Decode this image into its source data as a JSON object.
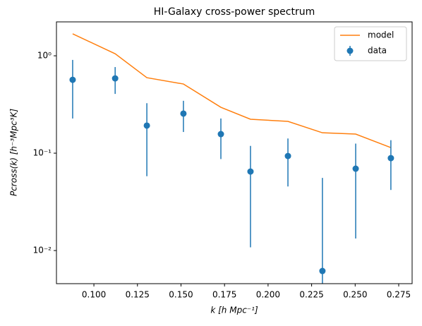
{
  "chart_data": {
    "type": "errorbar",
    "title": "HI-Galaxy cross-power spectrum",
    "xlabel": "k [h Mpc⁻¹]",
    "ylabel": "Pcross(k) [h⁻³Mpc³K]",
    "log_y": true,
    "legend": "upper right",
    "xlim": [
      0.0785,
      0.2827
    ],
    "ylim": [
      0.00457,
      2.23
    ],
    "xticks": [
      {
        "value": 0.1,
        "label": "0.100"
      },
      {
        "value": 0.125,
        "label": "0.125"
      },
      {
        "value": 0.15,
        "label": "0.150"
      },
      {
        "value": 0.175,
        "label": "0.175"
      },
      {
        "value": 0.2,
        "label": "0.200"
      },
      {
        "value": 0.225,
        "label": "0.225"
      },
      {
        "value": 0.25,
        "label": "0.250"
      },
      {
        "value": 0.275,
        "label": "0.275"
      }
    ],
    "yticks": [
      {
        "value": 0.01,
        "label": "10⁻²"
      },
      {
        "value": 0.1,
        "label": "10⁻¹"
      },
      {
        "value": 1,
        "label": "10⁰"
      }
    ],
    "x": [
      0.0878,
      0.1122,
      0.1304,
      0.1514,
      0.1729,
      0.1899,
      0.2114,
      0.2312,
      0.2503,
      0.2705
    ],
    "series": [
      {
        "name": "model",
        "kind": "line",
        "color": "#ff7f0e",
        "values": [
          1.68,
          1.05,
          0.596,
          0.513,
          0.296,
          0.223,
          0.212,
          0.162,
          0.157,
          0.114
        ]
      },
      {
        "name": "data",
        "kind": "errorbar",
        "color": "#1f77b4",
        "values": [
          0.567,
          0.586,
          0.192,
          0.255,
          0.157,
          0.0648,
          0.0935,
          0.00617,
          0.0693,
          0.0889
        ],
        "errors": [
          0.34,
          0.18,
          0.134,
          0.09,
          0.07,
          0.054,
          0.048,
          0.0495,
          0.056,
          0.047
        ]
      }
    ]
  }
}
